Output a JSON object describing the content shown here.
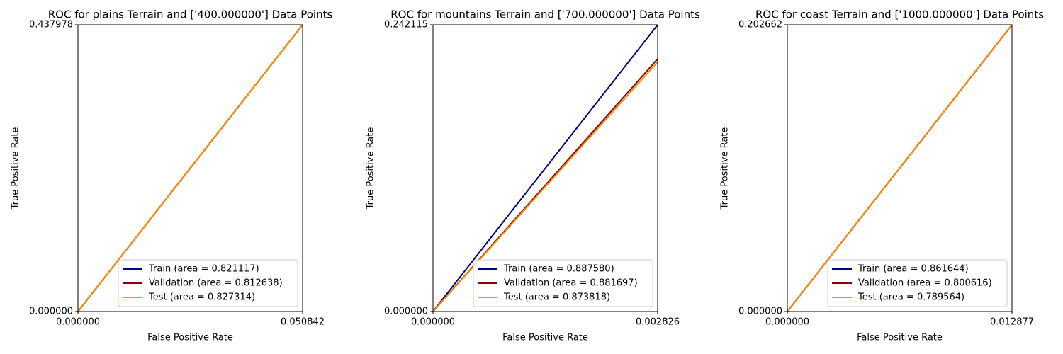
{
  "chart_data": [
    {
      "type": "line",
      "title": "ROC for plains Terrain and ['400.000000'] Data Points",
      "x_label": "False Positive Rate",
      "y_label": "True Positive Rate",
      "xlim": [
        0,
        0.050842
      ],
      "ylim": [
        0,
        0.437978
      ],
      "xticks": [
        {
          "value": 0,
          "label": "0.000000"
        },
        0.050842
      ],
      "yticks": [
        {
          "value": 0,
          "label": "0.000000"
        },
        0.437978
      ],
      "legend_loc": "lower right",
      "series": [
        {
          "name": "Train (area = 0.821117)",
          "color": "#000080",
          "x": [
            0,
            0.050842
          ],
          "values": [
            0,
            0.437978
          ]
        },
        {
          "name": "Validation (area = 0.812638)",
          "color": "#8b0000",
          "x": [
            0,
            0.050842
          ],
          "values": [
            0,
            0.437978
          ]
        },
        {
          "name": "Test (area = 0.827314)",
          "color": "#ff8c00",
          "x": [
            0,
            0.050842
          ],
          "values": [
            0,
            0.437978
          ]
        }
      ]
    },
    {
      "type": "line",
      "title": "ROC for mountains Terrain and ['700.000000'] Data Points",
      "x_label": "False Positive Rate",
      "y_label": "True Positive Rate",
      "xlim": [
        0,
        0.002826
      ],
      "ylim": [
        0,
        0.242115
      ],
      "xticks": [
        {
          "value": 0,
          "label": "0.000000"
        },
        0.002826
      ],
      "yticks": [
        {
          "value": 0,
          "label": "0.000000"
        },
        0.242115
      ],
      "legend_loc": "lower right",
      "series": [
        {
          "name": "Train (area = 0.887580)",
          "color": "#000080",
          "x": [
            0,
            0.002826
          ],
          "values": [
            0,
            0.242115
          ]
        },
        {
          "name": "Validation (area = 0.881697)",
          "color": "#8b0000",
          "x": [
            0,
            0.002826
          ],
          "values": [
            0,
            0.2133
          ]
        },
        {
          "name": "Test (area = 0.873818)",
          "color": "#ff8c00",
          "x": [
            0,
            0.002826
          ],
          "values": [
            0,
            0.2107
          ]
        }
      ]
    },
    {
      "type": "line",
      "title": "ROC for coast Terrain and ['1000.000000'] Data Points",
      "x_label": "False Positive Rate",
      "y_label": "True Positive Rate",
      "xlim": [
        0,
        0.012877
      ],
      "ylim": [
        0,
        0.202662
      ],
      "xticks": [
        {
          "value": 0,
          "label": "0.000000"
        },
        0.012877
      ],
      "yticks": [
        {
          "value": 0,
          "label": "0.000000"
        },
        0.202662
      ],
      "legend_loc": "lower right",
      "series": [
        {
          "name": "Train (area = 0.861644)",
          "color": "#000080",
          "x": [
            0,
            0.012877
          ],
          "values": [
            0,
            0.202662
          ]
        },
        {
          "name": "Validation (area = 0.800616)",
          "color": "#8b0000",
          "x": [
            0,
            0.012877
          ],
          "values": [
            0,
            0.202662
          ]
        },
        {
          "name": "Test (area = 0.789564)",
          "color": "#ff8c00",
          "x": [
            0,
            0.012877
          ],
          "values": [
            0,
            0.202662
          ]
        }
      ]
    }
  ]
}
